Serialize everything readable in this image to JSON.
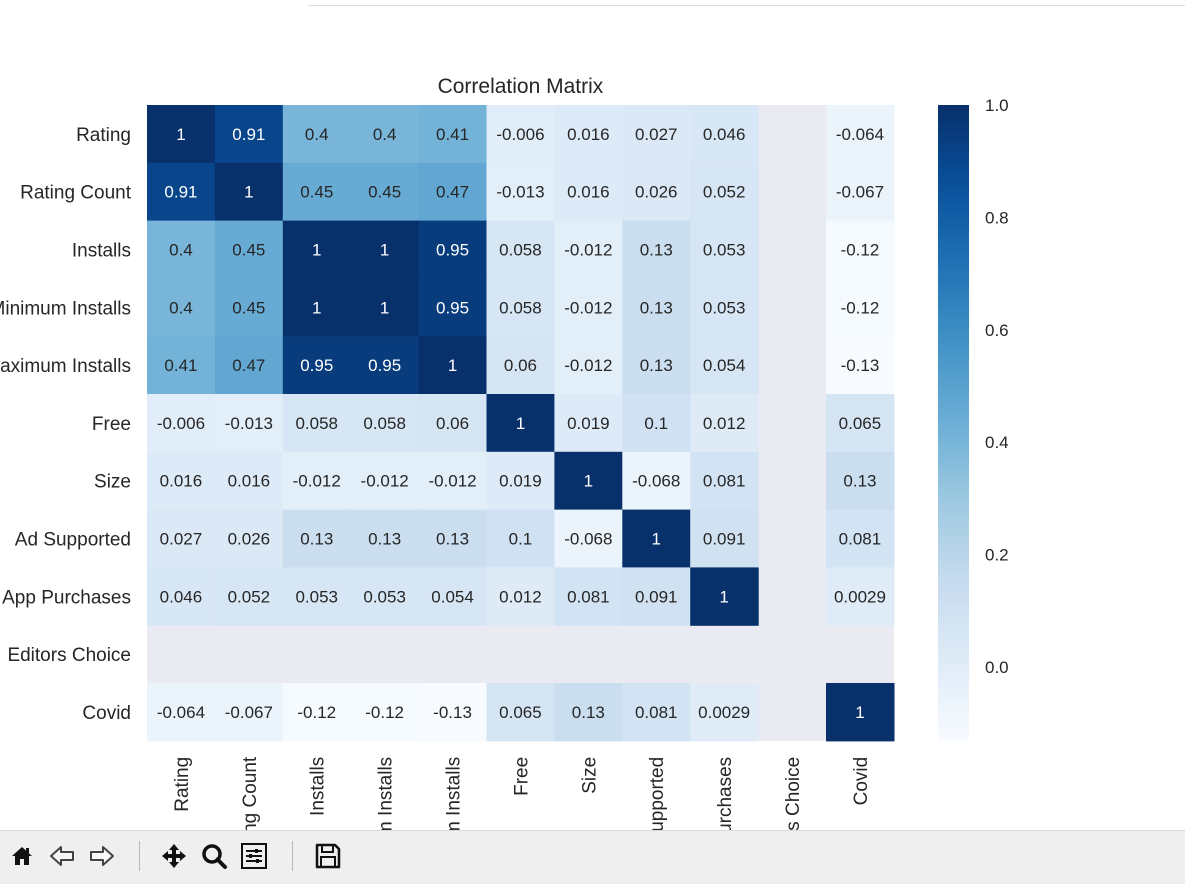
{
  "chart_data": {
    "type": "heatmap",
    "title": "Correlation Matrix",
    "row_labels": [
      "Rating",
      "Rating Count",
      "Installs",
      "Minimum Installs",
      "Maximum Installs",
      "Free",
      "Size",
      "Ad Supported",
      "In App Purchases",
      "Editors Choice",
      "Covid"
    ],
    "col_labels": [
      "Rating",
      "Rating Count",
      "Installs",
      "Minimum Installs",
      "Maximum Installs",
      "Free",
      "Size",
      "Ad Supported",
      "In App Purchases",
      "Editors Choice",
      "Covid"
    ],
    "values": [
      [
        1,
        0.91,
        0.4,
        0.4,
        0.41,
        -0.006,
        0.016,
        0.027,
        0.046,
        null,
        -0.064
      ],
      [
        0.91,
        1,
        0.45,
        0.45,
        0.47,
        -0.013,
        0.016,
        0.026,
        0.052,
        null,
        -0.067
      ],
      [
        0.4,
        0.45,
        1,
        1,
        0.95,
        0.058,
        -0.012,
        0.13,
        0.053,
        null,
        -0.12
      ],
      [
        0.4,
        0.45,
        1,
        1,
        0.95,
        0.058,
        -0.012,
        0.13,
        0.053,
        null,
        -0.12
      ],
      [
        0.41,
        0.47,
        0.95,
        0.95,
        1,
        0.06,
        -0.012,
        0.13,
        0.054,
        null,
        -0.13
      ],
      [
        -0.006,
        -0.013,
        0.058,
        0.058,
        0.06,
        1,
        0.019,
        0.1,
        0.012,
        null,
        0.065
      ],
      [
        0.016,
        0.016,
        -0.012,
        -0.012,
        -0.012,
        0.019,
        1,
        -0.068,
        0.081,
        null,
        0.13
      ],
      [
        0.027,
        0.026,
        0.13,
        0.13,
        0.13,
        0.1,
        -0.068,
        1,
        0.091,
        null,
        0.081
      ],
      [
        0.046,
        0.052,
        0.053,
        0.053,
        0.054,
        0.012,
        0.081,
        0.091,
        1,
        null,
        0.0029
      ],
      [
        null,
        null,
        null,
        null,
        null,
        null,
        null,
        null,
        null,
        null,
        null
      ],
      [
        -0.064,
        -0.067,
        -0.12,
        -0.12,
        -0.13,
        0.065,
        0.13,
        0.081,
        0.0029,
        null,
        1
      ]
    ],
    "vmin": -0.13,
    "vmax": 1.0,
    "colormap": "Blues",
    "nan_color": "#eaeaf2",
    "colorbar_ticks": [
      0.0,
      0.2,
      0.4,
      0.6,
      0.8,
      1.0
    ],
    "colorbar_tick_labels": [
      "0.0",
      "0.2",
      "0.4",
      "0.6",
      "0.8",
      "1.0"
    ],
    "annotations": true
  },
  "toolbar": {
    "buttons": [
      {
        "name": "home-button",
        "icon": "home-icon"
      },
      {
        "name": "back-button",
        "icon": "arrow-left-icon"
      },
      {
        "name": "forward-button",
        "icon": "arrow-right-icon"
      },
      {
        "name": "pan-button",
        "icon": "move-icon"
      },
      {
        "name": "zoom-button",
        "icon": "magnifier-icon"
      },
      {
        "name": "configure-subplots-button",
        "icon": "sliders-icon"
      },
      {
        "name": "save-button",
        "icon": "floppy-disk-icon"
      }
    ]
  }
}
